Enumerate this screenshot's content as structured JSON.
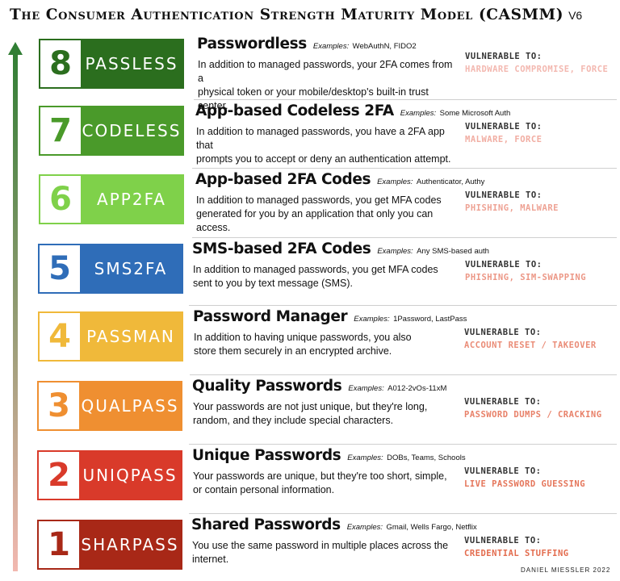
{
  "title": {
    "main": "The Consumer Authentication Strength Maturity Model (CASMM)",
    "version": "V6"
  },
  "examples_label": "Examples:",
  "vulnerable_label": "VULNERABLE TO:",
  "colors": {
    "arrow_top": "#2e7d32",
    "arrow_bottom": "#f2b8b0",
    "vuln_top": "#f3b8b0",
    "vuln_bottom": "#e36b4d"
  },
  "levels": [
    {
      "number": "8",
      "code": "PASSLESS",
      "color": "#2b6e1e",
      "title": "Passwordless",
      "examples": "WebAuthN, FIDO2",
      "desc_1": "In addition to managed passwords, your 2FA comes from a",
      "desc_2": "physical token or your mobile/desktop's built-in trust center.",
      "vulnerable": "HARDWARE COMPROMISE, FORCE"
    },
    {
      "number": "7",
      "code": "CODELESS",
      "color": "#4a9a2a",
      "title": "App-based Codeless 2FA",
      "examples": "Some Microsoft Auth",
      "desc_1": "In addition to managed passwords, you have a 2FA app that",
      "desc_2": "prompts you to accept or deny an authentication attempt.",
      "vulnerable": "MALWARE, FORCE"
    },
    {
      "number": "6",
      "code": "APP2FA",
      "color": "#7fd14a",
      "title": "App-based 2FA Codes",
      "examples": "Authenticator, Authy",
      "desc_1": "In addition to managed passwords, you get MFA codes",
      "desc_2": "generated for you by an application that only you can access.",
      "vulnerable": "PHISHING, MALWARE"
    },
    {
      "number": "5",
      "code": "SMS2FA",
      "color": "#2f6db8",
      "title": "SMS-based 2FA Codes",
      "examples": "Any SMS-based auth",
      "desc_1": "In addition to managed passwords,  you get MFA codes",
      "desc_2": "sent to you by text message (SMS).",
      "vulnerable": "PHISHING, SIM-SWAPPING"
    },
    {
      "number": "4",
      "code": "PASSMAN",
      "color": "#f0b93a",
      "title": "Password Manager",
      "examples": "1Password, LastPass",
      "desc_1": "In addition to having unique passwords, you also",
      "desc_2": "store them securely in an encrypted archive.",
      "vulnerable": "ACCOUNT RESET / TAKEOVER"
    },
    {
      "number": "3",
      "code": "QUALPASS",
      "color": "#ef8f31",
      "title": "Quality Passwords",
      "examples": "A012-2vOs-11xM",
      "desc_1": "Your passwords are not just unique, but they're long,",
      "desc_2": "random, and they include special characters.",
      "vulnerable": "PASSWORD DUMPS / CRACKING"
    },
    {
      "number": "2",
      "code": "UNIQPASS",
      "color": "#d93a2a",
      "title": "Unique Passwords",
      "examples": "DOBs, Teams, Schools",
      "desc_1": "Your passwords are unique, but they're too short, simple,",
      "desc_2": "or contain personal information.",
      "vulnerable": "LIVE PASSWORD GUESSING"
    },
    {
      "number": "1",
      "code": "SHARPASS",
      "color": "#a82817",
      "title": "Shared Passwords",
      "examples": "Gmail, Wells Fargo, Netflix",
      "desc_1": "You use the same password in multiple places across the",
      "desc_2": "internet.",
      "vulnerable": "CREDENTIAL STUFFING"
    }
  ],
  "footer": "DANIEL MIESSLER 2022"
}
